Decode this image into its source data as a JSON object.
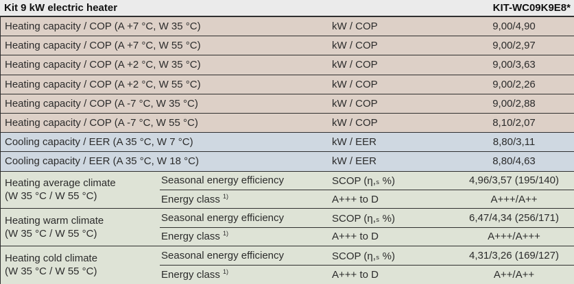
{
  "header": {
    "title": "Kit 9 kW electric heater",
    "model": "KIT-WC09K9E8*"
  },
  "simple_rows": [
    {
      "label": "Heating capacity / COP (A +7 °C, W 35 °C)",
      "unit": "kW / COP",
      "value": "9,00/4,90"
    },
    {
      "label": "Heating capacity / COP (A +7 °C, W 55 °C)",
      "unit": "kW / COP",
      "value": "9,00/2,97"
    },
    {
      "label": "Heating capacity / COP (A +2 °C, W 35 °C)",
      "unit": "kW / COP",
      "value": "9,00/3,63"
    },
    {
      "label": "Heating capacity / COP (A +2 °C, W 55 °C)",
      "unit": "kW / COP",
      "value": "9,00/2,26"
    },
    {
      "label": "Heating capacity / COP (A -7 °C, W 35 °C)",
      "unit": "kW / COP",
      "value": "9,00/2,88"
    },
    {
      "label": "Heating capacity / COP (A -7 °C, W 55 °C)",
      "unit": "kW / COP",
      "value": "8,10/2,07"
    },
    {
      "label": "Cooling capacity / EER (A 35 °C, W 7 °C)",
      "unit": "kW / EER",
      "value": "8,80/3,11"
    },
    {
      "label": "Cooling capacity / EER (A 35 °C, W 18 °C)",
      "unit": "kW / EER",
      "value": "8,80/4,63"
    }
  ],
  "climate_groups": [
    {
      "label_line1": "Heating average climate",
      "label_line2": "(W 35 °C / W 55 °C)",
      "rows": [
        {
          "param": "Seasonal energy efficiency",
          "unit": "SCOP (η,ₛ %)",
          "value": "4,96/3,57 (195/140)"
        },
        {
          "param": "Energy class",
          "param_sup": "1)",
          "unit": "A+++ to D",
          "value": "A+++/A++"
        }
      ]
    },
    {
      "label_line1": "Heating warm climate",
      "label_line2": "(W 35 °C / W 55 °C)",
      "rows": [
        {
          "param": "Seasonal energy efficiency",
          "unit": "SCOP (η,ₛ %)",
          "value": "6,47/4,34 (256/171)"
        },
        {
          "param": "Energy class",
          "param_sup": "1)",
          "unit": "A+++ to D",
          "value": "A+++/A+++"
        }
      ]
    },
    {
      "label_line1": "Heating cold climate",
      "label_line2": "(W 35 °C / W 55 °C)",
      "rows": [
        {
          "param": "Seasonal energy efficiency",
          "unit": "SCOP (η,ₛ %)",
          "value": "4,31/3,26 (169/127)"
        },
        {
          "param": "Energy class",
          "param_sup": "1)",
          "unit": "A+++ to D",
          "value": "A++/A++"
        }
      ]
    }
  ],
  "colors": {
    "header_bg": "#ebebeb",
    "heating_bg": "#ddd0c7",
    "cooling_bg": "#cfd8e1",
    "climate_bg": "#dee3d6",
    "border": "#2e2e2e",
    "text": "#2b2b2b"
  }
}
